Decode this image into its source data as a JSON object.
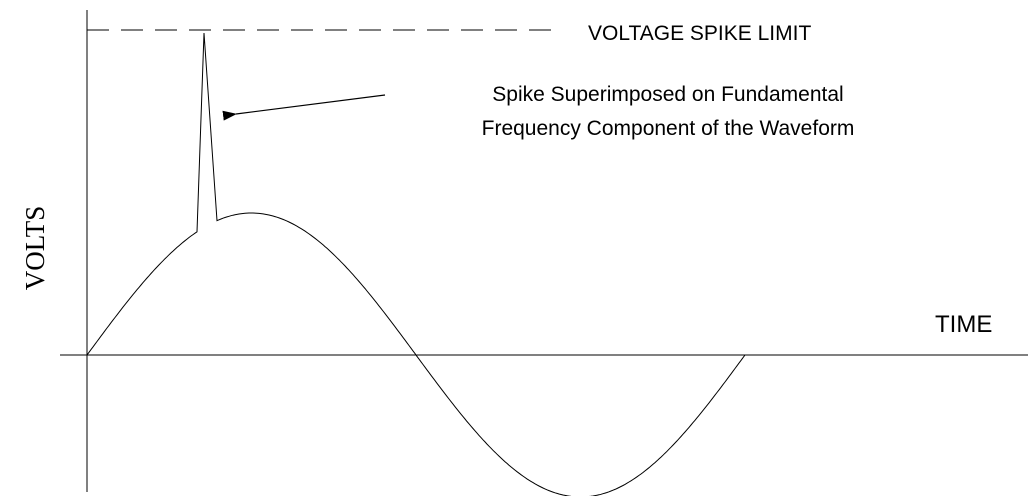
{
  "labels": {
    "limit": "VOLTAGE SPIKE LIMIT",
    "annotation": [
      "Spike Superimposed on Fundamental",
      "Frequency Component of the Waveform"
    ],
    "y_axis": "VOLTS",
    "x_axis": "TIME"
  }
}
